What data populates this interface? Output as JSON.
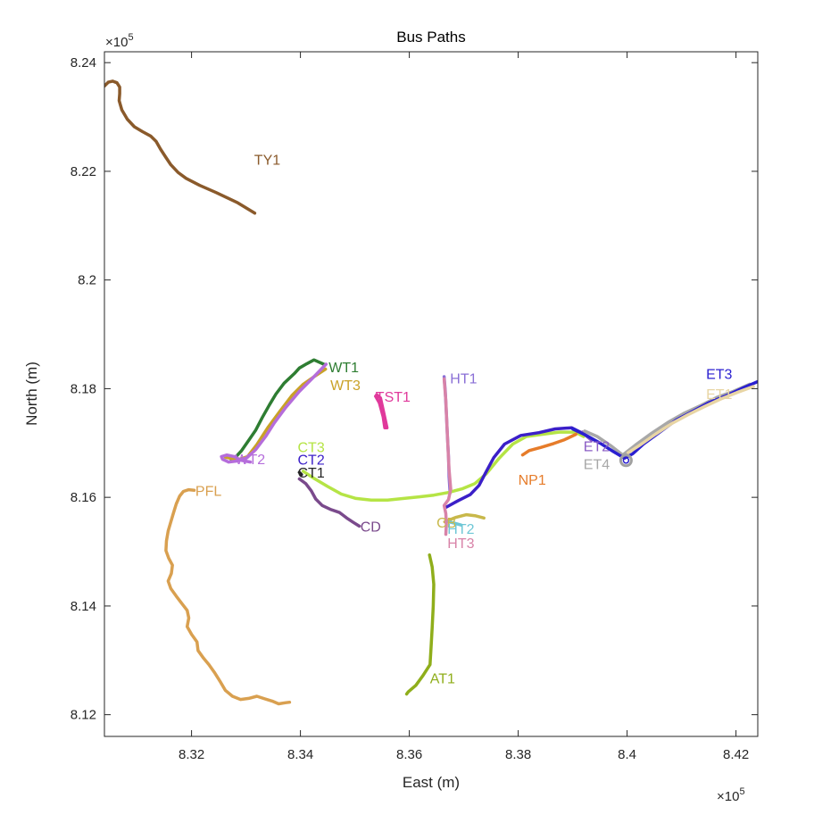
{
  "chart_data": {
    "type": "line",
    "title": "Bus Paths",
    "xlabel": "East (m)",
    "ylabel": "North (m)",
    "x_exponent": "×10",
    "x_exponent_power": "5",
    "y_exponent": "×10",
    "y_exponent_power": "5",
    "xlim": [
      8.304,
      8.424
    ],
    "ylim": [
      8.116,
      8.242
    ],
    "xticks": [
      8.32,
      8.34,
      8.36,
      8.38,
      8.4,
      8.42
    ],
    "xtick_labels": [
      "8.32",
      "8.34",
      "8.36",
      "8.38",
      "8.4",
      "8.42"
    ],
    "yticks": [
      8.12,
      8.14,
      8.16,
      8.18,
      8.2,
      8.22,
      8.24
    ],
    "ytick_labels": [
      "8.12",
      "8.14",
      "8.16",
      "8.18",
      "8.2",
      "8.22",
      "8.24"
    ],
    "grid": false,
    "series": [
      {
        "name": "TY1",
        "color": "#8a5a2b",
        "label_pos": [
          8.3315,
          8.2212
        ],
        "points": [
          [
            8.304,
            8.2357
          ],
          [
            8.3047,
            8.2364
          ],
          [
            8.3055,
            8.2366
          ],
          [
            8.3063,
            8.2363
          ],
          [
            8.3068,
            8.2355
          ],
          [
            8.3068,
            8.2343
          ],
          [
            8.3067,
            8.233
          ],
          [
            8.3072,
            8.2313
          ],
          [
            8.3082,
            8.2296
          ],
          [
            8.3095,
            8.2282
          ],
          [
            8.311,
            8.2273
          ],
          [
            8.3125,
            8.2265
          ],
          [
            8.3135,
            8.2255
          ],
          [
            8.3143,
            8.2241
          ],
          [
            8.3152,
            8.2227
          ],
          [
            8.3162,
            8.2212
          ],
          [
            8.3175,
            8.2198
          ],
          [
            8.319,
            8.2187
          ],
          [
            8.3215,
            8.2174
          ],
          [
            8.3245,
            8.2161
          ],
          [
            8.3285,
            8.2142
          ],
          [
            8.3316,
            8.2123
          ]
        ]
      },
      {
        "name": "WT1",
        "color": "#2e7d32",
        "label_pos": [
          8.3452,
          8.183
        ],
        "points": [
          [
            8.3272,
            8.1671
          ],
          [
            8.328,
            8.1673
          ],
          [
            8.3292,
            8.1686
          ],
          [
            8.3305,
            8.1705
          ],
          [
            8.3318,
            8.1724
          ],
          [
            8.333,
            8.1747
          ],
          [
            8.3343,
            8.177
          ],
          [
            8.3355,
            8.179
          ],
          [
            8.337,
            8.181
          ],
          [
            8.3389,
            8.1828
          ],
          [
            8.3398,
            8.1838
          ],
          [
            8.3412,
            8.1846
          ],
          [
            8.3425,
            8.1853
          ],
          [
            8.3445,
            8.1844
          ]
        ]
      },
      {
        "name": "WT3",
        "color": "#c9a227",
        "label_pos": [
          8.3455,
          8.1797
        ],
        "points": [
          [
            8.3262,
            8.1674
          ],
          [
            8.3285,
            8.1669
          ],
          [
            8.3303,
            8.1675
          ],
          [
            8.332,
            8.1697
          ],
          [
            8.334,
            8.1728
          ],
          [
            8.3362,
            8.1758
          ],
          [
            8.3385,
            8.1788
          ],
          [
            8.3405,
            8.1808
          ],
          [
            8.3425,
            8.1822
          ],
          [
            8.3446,
            8.1836
          ]
        ]
      },
      {
        "name": "WT2",
        "color": "#b56ddb",
        "label_pos": [
          8.328,
          8.1661
        ],
        "points": [
          [
            8.3447,
            8.1845
          ],
          [
            8.3425,
            8.1822
          ],
          [
            8.3398,
            8.1795
          ],
          [
            8.3372,
            8.1764
          ],
          [
            8.3352,
            8.1737
          ],
          [
            8.3336,
            8.1712
          ],
          [
            8.3318,
            8.1688
          ],
          [
            8.3302,
            8.1673
          ],
          [
            8.3285,
            8.1667
          ],
          [
            8.3268,
            8.1665
          ],
          [
            8.3257,
            8.167
          ],
          [
            8.3255,
            8.1675
          ],
          [
            8.3265,
            8.1678
          ],
          [
            8.3278,
            8.1675
          ],
          [
            8.3292,
            8.1668
          ],
          [
            8.3308,
            8.1665
          ]
        ]
      },
      {
        "name": "TST1",
        "color": "#e0399b",
        "label_pos": [
          8.3538,
          8.1776
        ],
        "points": [
          [
            8.3538,
            8.1786
          ],
          [
            8.3545,
            8.1774
          ],
          [
            8.3552,
            8.1748
          ],
          [
            8.3555,
            8.1728
          ],
          [
            8.3559,
            8.1728
          ],
          [
            8.3552,
            8.1761
          ],
          [
            8.3547,
            8.1783
          ],
          [
            8.354,
            8.1789
          ]
        ]
      },
      {
        "name": "HT1",
        "color": "#8a6fd6",
        "label_pos": [
          8.3675,
          8.181
        ],
        "points": [
          [
            8.3664,
            8.1822
          ],
          [
            8.3666,
            8.1795
          ],
          [
            8.3668,
            8.1755
          ],
          [
            8.367,
            8.1712
          ],
          [
            8.3672,
            8.1675
          ],
          [
            8.3673,
            8.1638
          ],
          [
            8.3675,
            8.1608
          ]
        ]
      },
      {
        "name": "CT3",
        "color": "#b5e445",
        "label_pos": [
          8.3395,
          8.1683
        ],
        "points": [
          [
            8.3405,
            8.1648
          ],
          [
            8.3425,
            8.1635
          ],
          [
            8.345,
            8.162
          ],
          [
            8.3475,
            8.1606
          ],
          [
            8.3502,
            8.1598
          ],
          [
            8.353,
            8.1595
          ],
          [
            8.356,
            8.1595
          ],
          [
            8.359,
            8.1598
          ],
          [
            8.3618,
            8.1601
          ],
          [
            8.3645,
            8.1604
          ],
          [
            8.3672,
            8.1609
          ],
          [
            8.3698,
            8.1616
          ],
          [
            8.372,
            8.1625
          ],
          [
            8.3742,
            8.1644
          ],
          [
            8.3765,
            8.1672
          ],
          [
            8.379,
            8.1698
          ],
          [
            8.3815,
            8.1712
          ],
          [
            8.3845,
            8.1716
          ],
          [
            8.3875,
            8.172
          ],
          [
            8.3905,
            8.172
          ],
          [
            8.392,
            8.1712
          ]
        ]
      },
      {
        "name": "CT2",
        "color": "#3b1fc8",
        "label_pos": [
          8.3395,
          8.166
        ],
        "points": [
          [
            8.3668,
            8.1582
          ],
          [
            8.369,
            8.1594
          ],
          [
            8.3712,
            8.1605
          ],
          [
            8.3728,
            8.1622
          ],
          [
            8.374,
            8.1645
          ],
          [
            8.3755,
            8.1673
          ],
          [
            8.3775,
            8.1698
          ],
          [
            8.3805,
            8.1714
          ],
          [
            8.3838,
            8.1719
          ],
          [
            8.3868,
            8.1726
          ],
          [
            8.3898,
            8.1728
          ],
          [
            8.3918,
            8.1718
          ]
        ]
      },
      {
        "name": "CT1",
        "color": "#252525",
        "label_pos": [
          8.3395,
          8.1636
        ],
        "points": [
          [
            8.3398,
            8.1646
          ],
          [
            8.3402,
            8.1642
          ]
        ]
      },
      {
        "name": "CD",
        "color": "#7a4a8c",
        "label_pos": [
          8.351,
          8.1537
        ],
        "points": [
          [
            8.3398,
            8.1634
          ],
          [
            8.341,
            8.1625
          ],
          [
            8.342,
            8.1612
          ],
          [
            8.3428,
            8.1597
          ],
          [
            8.344,
            8.1585
          ],
          [
            8.3455,
            8.1578
          ],
          [
            8.3472,
            8.1572
          ],
          [
            8.3485,
            8.1562
          ],
          [
            8.3497,
            8.1554
          ],
          [
            8.3508,
            8.1547
          ]
        ]
      },
      {
        "name": "PFL",
        "color": "#d9a050",
        "label_pos": [
          8.3207,
          8.1603
        ],
        "points": [
          [
            8.3205,
            8.1613
          ],
          [
            8.3195,
            8.1614
          ],
          [
            8.3185,
            8.1611
          ],
          [
            8.3178,
            8.1602
          ],
          [
            8.3172,
            8.1588
          ],
          [
            8.3167,
            8.1572
          ],
          [
            8.3162,
            8.1555
          ],
          [
            8.3157,
            8.1538
          ],
          [
            8.3154,
            8.152
          ],
          [
            8.3153,
            8.1502
          ],
          [
            8.3158,
            8.1488
          ],
          [
            8.3165,
            8.1475
          ],
          [
            8.3163,
            8.146
          ],
          [
            8.3157,
            8.1446
          ],
          [
            8.3162,
            8.1432
          ],
          [
            8.3172,
            8.1418
          ],
          [
            8.3182,
            8.1405
          ],
          [
            8.3192,
            8.1392
          ],
          [
            8.3195,
            8.1378
          ],
          [
            8.3192,
            8.1362
          ],
          [
            8.32,
            8.1348
          ],
          [
            8.321,
            8.1334
          ],
          [
            8.3212,
            8.1318
          ],
          [
            8.3222,
            8.1304
          ],
          [
            8.3232,
            8.1292
          ],
          [
            8.3242,
            8.1278
          ],
          [
            8.3252,
            8.1262
          ],
          [
            8.3262,
            8.1245
          ],
          [
            8.3275,
            8.1234
          ],
          [
            8.329,
            8.1228
          ],
          [
            8.3305,
            8.123
          ],
          [
            8.332,
            8.1234
          ],
          [
            8.3335,
            8.1229
          ],
          [
            8.3348,
            8.1225
          ],
          [
            8.336,
            8.122
          ],
          [
            8.3372,
            8.1222
          ],
          [
            8.338,
            8.1223
          ]
        ]
      },
      {
        "name": "CB",
        "color": "#c8b84a",
        "label_pos": [
          8.365,
          8.1544
        ],
        "points": [
          [
            8.3665,
            8.1555
          ],
          [
            8.3685,
            8.1563
          ],
          [
            8.3705,
            8.1568
          ],
          [
            8.3722,
            8.1566
          ],
          [
            8.3737,
            8.1562
          ]
        ]
      },
      {
        "name": "HT2",
        "color": "#6ec7d6",
        "label_pos": [
          8.367,
          8.1533
        ],
        "points": [
          [
            8.3672,
            8.1555
          ],
          [
            8.3685,
            8.1552
          ],
          [
            8.3695,
            8.1549
          ]
        ]
      },
      {
        "name": "HT3",
        "color": "#d883a8",
        "label_pos": [
          8.367,
          8.1507
        ],
        "points": [
          [
            8.3664,
            8.1818
          ],
          [
            8.3667,
            8.1778
          ],
          [
            8.3669,
            8.1735
          ],
          [
            8.3671,
            8.1692
          ],
          [
            8.3673,
            8.1652
          ],
          [
            8.3676,
            8.1615
          ],
          [
            8.3672,
            8.1596
          ],
          [
            8.3664,
            8.1585
          ],
          [
            8.3667,
            8.157
          ],
          [
            8.3668,
            8.155
          ],
          [
            8.3667,
            8.1532
          ]
        ]
      },
      {
        "name": "AT1",
        "color": "#8fae1b",
        "label_pos": [
          8.3638,
          8.1258
        ],
        "points": [
          [
            8.3637,
            8.1494
          ],
          [
            8.3642,
            8.1472
          ],
          [
            8.3645,
            8.144
          ],
          [
            8.3644,
            8.14
          ],
          [
            8.3642,
            8.136
          ],
          [
            8.364,
            8.1325
          ],
          [
            8.3638,
            8.1292
          ],
          [
            8.3625,
            8.1272
          ],
          [
            8.3612,
            8.1254
          ],
          [
            8.3598,
            8.1242
          ],
          [
            8.3595,
            8.1238
          ]
        ]
      },
      {
        "name": "NP1",
        "color": "#e67c2a",
        "label_pos": [
          8.38,
          8.1623
        ],
        "points": [
          [
            8.3808,
            8.1678
          ],
          [
            8.382,
            8.1686
          ],
          [
            8.3842,
            8.1692
          ],
          [
            8.3865,
            8.1699
          ],
          [
            8.3885,
            8.1706
          ],
          [
            8.3906,
            8.1716
          ]
        ]
      },
      {
        "name": "ET2",
        "color": "#8a5cc4",
        "label_pos": [
          8.392,
          8.1685
        ],
        "points": [
          [
            8.3918,
            8.172
          ],
          [
            8.3925,
            8.1713
          ],
          [
            8.3935,
            8.1705
          ]
        ]
      },
      {
        "name": "ET4",
        "color": "#a8a8a8",
        "label_pos": [
          8.392,
          8.1652
        ],
        "points": [
          [
            8.3922,
            8.1722
          ],
          [
            8.3945,
            8.1712
          ],
          [
            8.397,
            8.1695
          ],
          [
            8.3992,
            8.1678
          ],
          [
            8.4015,
            8.1696
          ],
          [
            8.4045,
            8.1718
          ],
          [
            8.4075,
            8.1738
          ],
          [
            8.4105,
            8.1755
          ],
          [
            8.4135,
            8.1769
          ],
          [
            8.4165,
            8.1784
          ],
          [
            8.4195,
            8.1795
          ],
          [
            8.4225,
            8.1808
          ]
        ]
      },
      {
        "name": "ET3",
        "color": "#2a1fd0",
        "label_pos": [
          8.4145,
          8.1818
        ],
        "points": [
          [
            8.39,
            8.1726
          ],
          [
            8.3925,
            8.1714
          ],
          [
            8.395,
            8.17
          ],
          [
            8.3975,
            8.1684
          ],
          [
            8.3995,
            8.1672
          ],
          [
            8.401,
            8.168
          ],
          [
            8.403,
            8.1698
          ],
          [
            8.406,
            8.172
          ],
          [
            8.409,
            8.1742
          ],
          [
            8.412,
            8.1758
          ],
          [
            8.415,
            8.1774
          ],
          [
            8.418,
            8.1786
          ],
          [
            8.421,
            8.18
          ],
          [
            8.424,
            8.1813
          ]
        ]
      },
      {
        "name": "ET1",
        "color": "#e8d5a4",
        "label_pos": [
          8.4145,
          8.1781
        ],
        "points": [
          [
            8.4002,
            8.1682
          ],
          [
            8.4022,
            8.1695
          ],
          [
            8.4052,
            8.1716
          ],
          [
            8.4082,
            8.1736
          ],
          [
            8.4112,
            8.1752
          ],
          [
            8.4142,
            8.1767
          ],
          [
            8.4172,
            8.1781
          ],
          [
            8.4202,
            8.1793
          ],
          [
            8.4232,
            8.1804
          ]
        ]
      }
    ],
    "ring": {
      "color": "#a0a0a0",
      "inner_color": "#2a1fd0",
      "center": [
        8.3998,
        8.1668
      ]
    }
  }
}
